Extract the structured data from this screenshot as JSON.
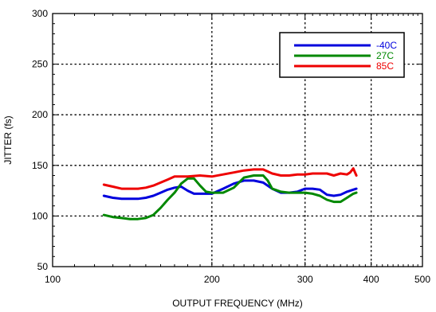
{
  "chart_data": {
    "type": "line",
    "xlabel": "OUTPUT FREQUENCY (MHz)",
    "ylabel": "JITTER (fs)",
    "xscale": "log",
    "xlim": [
      100,
      500
    ],
    "ylim": [
      50,
      300
    ],
    "xticks": [
      100,
      200,
      300,
      400,
      500
    ],
    "yticks": [
      50,
      100,
      150,
      200,
      250,
      300
    ],
    "grid": true,
    "legend_position": "top-right",
    "series": [
      {
        "name": "-40C",
        "color": "#0000dd",
        "points": [
          [
            125,
            120
          ],
          [
            130,
            118
          ],
          [
            135,
            117
          ],
          [
            140,
            117
          ],
          [
            145,
            117
          ],
          [
            150,
            118
          ],
          [
            155,
            120
          ],
          [
            160,
            123
          ],
          [
            165,
            126
          ],
          [
            170,
            128
          ],
          [
            175,
            129
          ],
          [
            180,
            125
          ],
          [
            185,
            122
          ],
          [
            190,
            122
          ],
          [
            200,
            122
          ],
          [
            210,
            127
          ],
          [
            220,
            132
          ],
          [
            230,
            135
          ],
          [
            240,
            135
          ],
          [
            250,
            133
          ],
          [
            260,
            127
          ],
          [
            270,
            123
          ],
          [
            280,
            123
          ],
          [
            290,
            124
          ],
          [
            300,
            127
          ],
          [
            310,
            127
          ],
          [
            320,
            126
          ],
          [
            330,
            121
          ],
          [
            340,
            120
          ],
          [
            350,
            121
          ],
          [
            360,
            124
          ],
          [
            370,
            126
          ],
          [
            375,
            127
          ]
        ]
      },
      {
        "name": "27C",
        "color": "#008800",
        "points": [
          [
            125,
            101
          ],
          [
            130,
            99
          ],
          [
            135,
            98
          ],
          [
            140,
            97
          ],
          [
            145,
            97
          ],
          [
            150,
            98
          ],
          [
            155,
            101
          ],
          [
            160,
            108
          ],
          [
            165,
            116
          ],
          [
            170,
            123
          ],
          [
            175,
            132
          ],
          [
            180,
            137
          ],
          [
            185,
            137
          ],
          [
            190,
            130
          ],
          [
            195,
            124
          ],
          [
            200,
            123
          ],
          [
            210,
            123
          ],
          [
            220,
            128
          ],
          [
            230,
            138
          ],
          [
            240,
            140
          ],
          [
            250,
            140
          ],
          [
            255,
            135
          ],
          [
            260,
            127
          ],
          [
            270,
            124
          ],
          [
            280,
            123
          ],
          [
            290,
            123
          ],
          [
            300,
            123
          ],
          [
            310,
            122
          ],
          [
            320,
            120
          ],
          [
            330,
            116
          ],
          [
            340,
            114
          ],
          [
            350,
            114
          ],
          [
            360,
            118
          ],
          [
            370,
            122
          ],
          [
            375,
            123
          ]
        ]
      },
      {
        "name": "85C",
        "color": "#ee0000",
        "points": [
          [
            125,
            131
          ],
          [
            130,
            129
          ],
          [
            135,
            127
          ],
          [
            140,
            127
          ],
          [
            145,
            127
          ],
          [
            150,
            128
          ],
          [
            155,
            130
          ],
          [
            160,
            133
          ],
          [
            165,
            136
          ],
          [
            170,
            139
          ],
          [
            180,
            139
          ],
          [
            190,
            140
          ],
          [
            200,
            139
          ],
          [
            210,
            141
          ],
          [
            220,
            143
          ],
          [
            230,
            145
          ],
          [
            240,
            146
          ],
          [
            250,
            146
          ],
          [
            260,
            142
          ],
          [
            270,
            140
          ],
          [
            280,
            140
          ],
          [
            290,
            141
          ],
          [
            300,
            141
          ],
          [
            310,
            142
          ],
          [
            320,
            142
          ],
          [
            330,
            142
          ],
          [
            340,
            140
          ],
          [
            350,
            142
          ],
          [
            360,
            141
          ],
          [
            365,
            143
          ],
          [
            370,
            147
          ],
          [
            375,
            140
          ]
        ]
      }
    ]
  }
}
